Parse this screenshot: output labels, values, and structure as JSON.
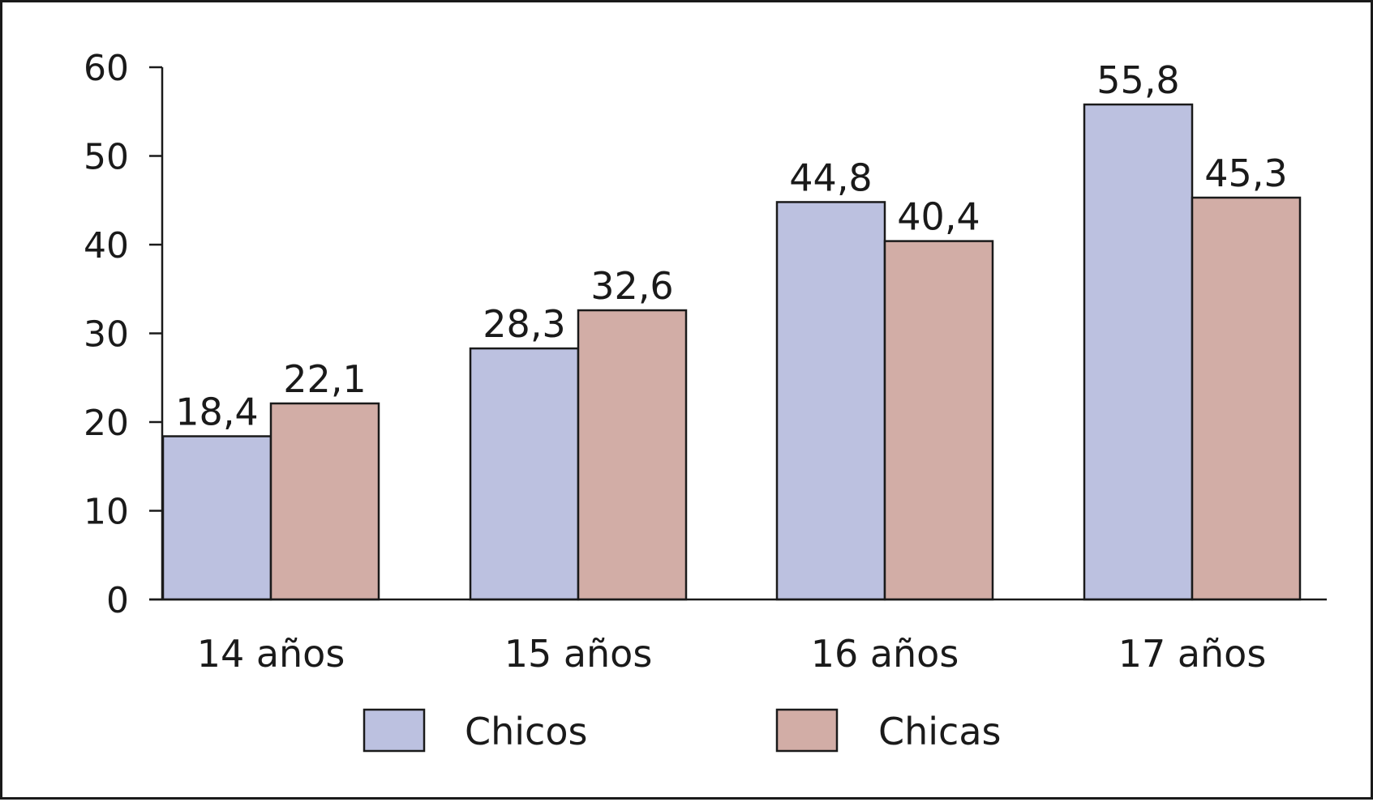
{
  "chart_data": {
    "type": "bar",
    "categories": [
      "14 años",
      "15 años",
      "16 años",
      "17 años"
    ],
    "series": [
      {
        "name": "Chicos",
        "values": [
          18.4,
          28.3,
          44.8,
          55.8
        ],
        "labels": [
          "18,4",
          "28,3",
          "44,8",
          "55,8"
        ],
        "color": "#bcc1e0"
      },
      {
        "name": "Chicas",
        "values": [
          22.1,
          32.6,
          40.4,
          45.3
        ],
        "labels": [
          "22,1",
          "32,6",
          "40,4",
          "45,3"
        ],
        "color": "#d2ada6"
      }
    ],
    "y_ticks": [
      "0",
      "10",
      "20",
      "30",
      "40",
      "50",
      "60"
    ],
    "ylim": [
      0,
      60
    ],
    "title": "",
    "xlabel": "",
    "ylabel": "",
    "grid": false,
    "legend_position": "bottom"
  }
}
